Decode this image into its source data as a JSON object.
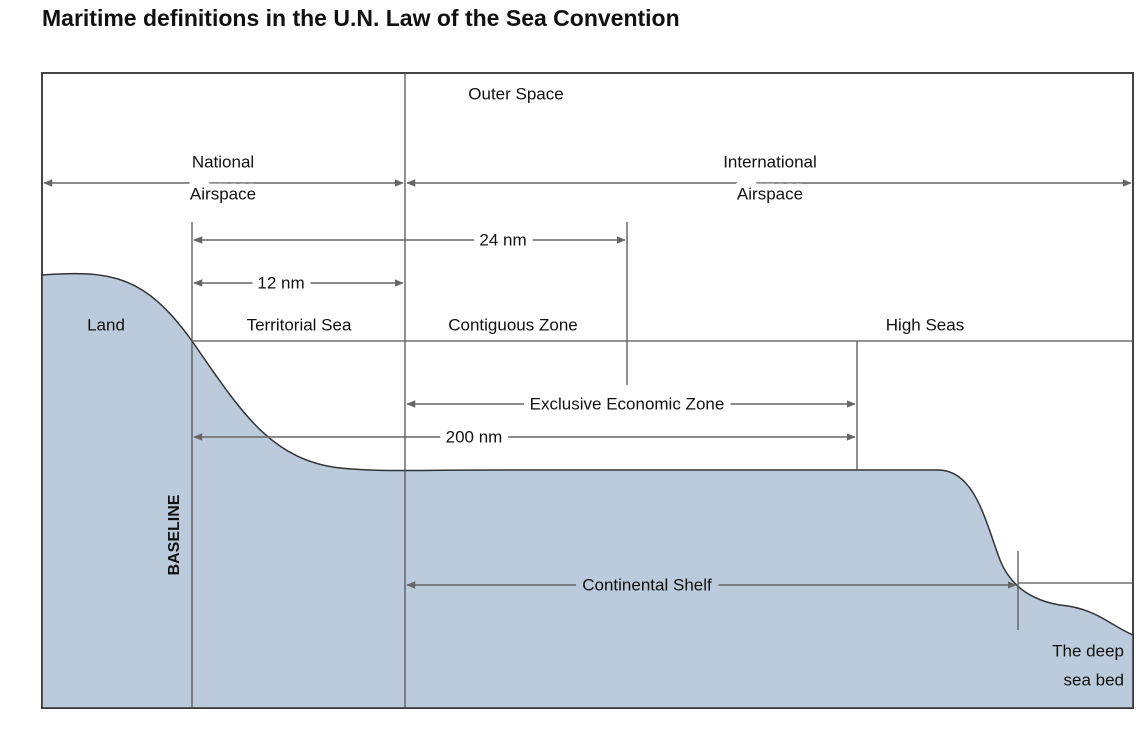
{
  "header": {
    "title": "Maritime definitions in the U.N. Law of the Sea Convention"
  },
  "labels": {
    "outer_space": "Outer Space",
    "national_airspace": [
      "National",
      "Airspace"
    ],
    "international_airspace": [
      "International",
      "Airspace"
    ],
    "nm24": "24 nm",
    "nm12": "12 nm",
    "land": "Land",
    "territorial_sea": "Territorial Sea",
    "contiguous_zone": "Contiguous Zone",
    "high_seas": "High Seas",
    "eez": "Exclusive Economic Zone",
    "nm200": "200 nm",
    "baseline": "BASELINE",
    "continental_shelf": "Continental Shelf",
    "deep_sea_bed": [
      "The deep",
      "sea bed"
    ]
  }
}
